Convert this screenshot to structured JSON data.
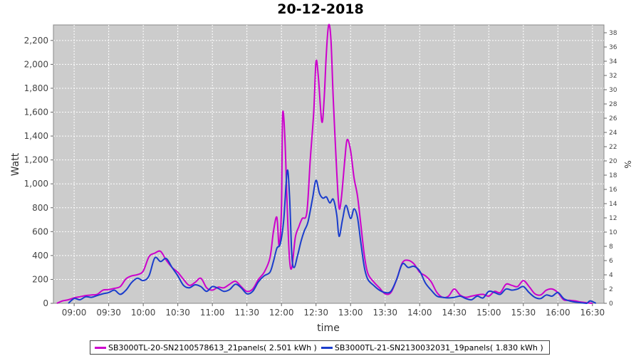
{
  "chart_data": {
    "type": "line",
    "title": "20-12-2018",
    "xlabel": "time",
    "ylabel": "Watt",
    "y2label": "%",
    "x_ticks": [
      "09:00",
      "09:30",
      "10:00",
      "10:30",
      "11:00",
      "11:30",
      "12:00",
      "12:30",
      "13:00",
      "13:30",
      "14:00",
      "14:30",
      "15:00",
      "15:30",
      "16:00",
      "16:30"
    ],
    "y_ticks": [
      "0",
      "200",
      "400",
      "600",
      "800",
      "1,000",
      "1,200",
      "1,400",
      "1,600",
      "1,800",
      "2,000",
      "2,200"
    ],
    "y2_ticks": [
      "0",
      "2",
      "4",
      "6",
      "8",
      "10",
      "12",
      "14",
      "16",
      "18",
      "20",
      "22",
      "24",
      "26",
      "28",
      "30",
      "32",
      "34",
      "36",
      "38"
    ],
    "ylim": [
      0,
      2330
    ],
    "y2lim": [
      0,
      39.1
    ],
    "xlim": [
      "08:42",
      "16:40"
    ],
    "grid": true,
    "legend_position": "bottom",
    "background": "#cccccc",
    "series": [
      {
        "name": "SB3000TL-20-SN2100578613_21panels( 2.501 kWh )",
        "color": "#cc00cc",
        "points": [
          [
            "08:45",
            0
          ],
          [
            "08:50",
            20
          ],
          [
            "08:55",
            30
          ],
          [
            "09:00",
            45
          ],
          [
            "09:05",
            55
          ],
          [
            "09:10",
            65
          ],
          [
            "09:15",
            70
          ],
          [
            "09:20",
            75
          ],
          [
            "09:25",
            110
          ],
          [
            "09:30",
            115
          ],
          [
            "09:35",
            125
          ],
          [
            "09:40",
            140
          ],
          [
            "09:45",
            205
          ],
          [
            "09:50",
            230
          ],
          [
            "09:55",
            240
          ],
          [
            "10:00",
            270
          ],
          [
            "10:05",
            390
          ],
          [
            "10:10",
            420
          ],
          [
            "10:15",
            435
          ],
          [
            "10:20",
            360
          ],
          [
            "10:25",
            300
          ],
          [
            "10:30",
            260
          ],
          [
            "10:35",
            200
          ],
          [
            "10:40",
            150
          ],
          [
            "10:45",
            175
          ],
          [
            "10:50",
            210
          ],
          [
            "10:55",
            130
          ],
          [
            "11:00",
            110
          ],
          [
            "11:05",
            135
          ],
          [
            "11:10",
            130
          ],
          [
            "11:15",
            160
          ],
          [
            "11:20",
            185
          ],
          [
            "11:25",
            140
          ],
          [
            "11:30",
            100
          ],
          [
            "11:35",
            120
          ],
          [
            "11:40",
            200
          ],
          [
            "11:45",
            260
          ],
          [
            "11:50",
            380
          ],
          [
            "11:53",
            600
          ],
          [
            "11:56",
            720
          ],
          [
            "11:58",
            480
          ],
          [
            "12:00",
            800
          ],
          [
            "12:01",
            1580
          ],
          [
            "12:03",
            1380
          ],
          [
            "12:05",
            800
          ],
          [
            "12:07",
            370
          ],
          [
            "12:09",
            300
          ],
          [
            "12:12",
            550
          ],
          [
            "12:15",
            640
          ],
          [
            "12:18",
            710
          ],
          [
            "12:22",
            760
          ],
          [
            "12:25",
            1200
          ],
          [
            "12:28",
            1600
          ],
          [
            "12:30",
            2020
          ],
          [
            "12:32",
            1900
          ],
          [
            "12:35",
            1520
          ],
          [
            "12:37",
            1700
          ],
          [
            "12:39",
            2100
          ],
          [
            "12:41",
            2330
          ],
          [
            "12:43",
            2200
          ],
          [
            "12:45",
            1700
          ],
          [
            "12:48",
            1100
          ],
          [
            "12:50",
            800
          ],
          [
            "12:52",
            880
          ],
          [
            "12:55",
            1200
          ],
          [
            "12:57",
            1370
          ],
          [
            "13:00",
            1280
          ],
          [
            "13:03",
            1050
          ],
          [
            "13:06",
            900
          ],
          [
            "13:09",
            650
          ],
          [
            "13:12",
            400
          ],
          [
            "13:15",
            250
          ],
          [
            "13:20",
            180
          ],
          [
            "13:25",
            130
          ],
          [
            "13:30",
            80
          ],
          [
            "13:35",
            90
          ],
          [
            "13:40",
            200
          ],
          [
            "13:45",
            340
          ],
          [
            "13:50",
            360
          ],
          [
            "13:55",
            330
          ],
          [
            "14:00",
            260
          ],
          [
            "14:05",
            230
          ],
          [
            "14:10",
            180
          ],
          [
            "14:15",
            90
          ],
          [
            "14:20",
            50
          ],
          [
            "14:25",
            60
          ],
          [
            "14:30",
            120
          ],
          [
            "14:35",
            70
          ],
          [
            "14:40",
            50
          ],
          [
            "14:45",
            60
          ],
          [
            "14:50",
            70
          ],
          [
            "14:55",
            75
          ],
          [
            "15:00",
            60
          ],
          [
            "15:05",
            100
          ],
          [
            "15:10",
            90
          ],
          [
            "15:15",
            160
          ],
          [
            "15:20",
            150
          ],
          [
            "15:25",
            140
          ],
          [
            "15:30",
            190
          ],
          [
            "15:35",
            140
          ],
          [
            "15:40",
            80
          ],
          [
            "15:45",
            70
          ],
          [
            "15:50",
            110
          ],
          [
            "15:55",
            120
          ],
          [
            "16:00",
            90
          ],
          [
            "16:05",
            30
          ],
          [
            "16:10",
            25
          ],
          [
            "16:15",
            20
          ],
          [
            "16:20",
            10
          ],
          [
            "16:25",
            5
          ],
          [
            "16:30",
            0
          ]
        ]
      },
      {
        "name": "SB3000TL-21-SN2130032031_19panels( 1.830 kWh )",
        "color": "#1a3dcc",
        "points": [
          [
            "08:55",
            0
          ],
          [
            "09:00",
            40
          ],
          [
            "09:05",
            30
          ],
          [
            "09:10",
            55
          ],
          [
            "09:15",
            50
          ],
          [
            "09:20",
            65
          ],
          [
            "09:25",
            80
          ],
          [
            "09:30",
            90
          ],
          [
            "09:35",
            110
          ],
          [
            "09:40",
            75
          ],
          [
            "09:45",
            110
          ],
          [
            "09:50",
            175
          ],
          [
            "09:55",
            210
          ],
          [
            "10:00",
            190
          ],
          [
            "10:05",
            230
          ],
          [
            "10:10",
            380
          ],
          [
            "10:15",
            350
          ],
          [
            "10:20",
            375
          ],
          [
            "10:25",
            300
          ],
          [
            "10:30",
            230
          ],
          [
            "10:35",
            150
          ],
          [
            "10:40",
            130
          ],
          [
            "10:45",
            155
          ],
          [
            "10:50",
            140
          ],
          [
            "10:55",
            100
          ],
          [
            "11:00",
            140
          ],
          [
            "11:05",
            125
          ],
          [
            "11:10",
            100
          ],
          [
            "11:15",
            115
          ],
          [
            "11:20",
            160
          ],
          [
            "11:25",
            130
          ],
          [
            "11:30",
            80
          ],
          [
            "11:35",
            100
          ],
          [
            "11:40",
            180
          ],
          [
            "11:45",
            230
          ],
          [
            "11:50",
            260
          ],
          [
            "11:53",
            350
          ],
          [
            "11:56",
            460
          ],
          [
            "11:59",
            500
          ],
          [
            "12:02",
            700
          ],
          [
            "12:05",
            1110
          ],
          [
            "12:07",
            900
          ],
          [
            "12:09",
            400
          ],
          [
            "12:11",
            300
          ],
          [
            "12:14",
            400
          ],
          [
            "12:17",
            520
          ],
          [
            "12:20",
            610
          ],
          [
            "12:23",
            680
          ],
          [
            "12:27",
            880
          ],
          [
            "12:30",
            1030
          ],
          [
            "12:33",
            920
          ],
          [
            "12:36",
            880
          ],
          [
            "12:39",
            890
          ],
          [
            "12:42",
            840
          ],
          [
            "12:45",
            870
          ],
          [
            "12:48",
            740
          ],
          [
            "12:50",
            560
          ],
          [
            "12:53",
            700
          ],
          [
            "12:56",
            820
          ],
          [
            "13:00",
            710
          ],
          [
            "13:03",
            790
          ],
          [
            "13:06",
            720
          ],
          [
            "13:09",
            500
          ],
          [
            "13:12",
            300
          ],
          [
            "13:15",
            200
          ],
          [
            "13:20",
            150
          ],
          [
            "13:25",
            110
          ],
          [
            "13:30",
            90
          ],
          [
            "13:35",
            100
          ],
          [
            "13:40",
            200
          ],
          [
            "13:45",
            330
          ],
          [
            "13:50",
            300
          ],
          [
            "13:55",
            310
          ],
          [
            "14:00",
            270
          ],
          [
            "14:05",
            170
          ],
          [
            "14:10",
            110
          ],
          [
            "14:15",
            60
          ],
          [
            "14:20",
            50
          ],
          [
            "14:25",
            45
          ],
          [
            "14:30",
            50
          ],
          [
            "14:35",
            60
          ],
          [
            "14:40",
            40
          ],
          [
            "14:45",
            30
          ],
          [
            "14:50",
            60
          ],
          [
            "14:55",
            45
          ],
          [
            "15:00",
            100
          ],
          [
            "15:05",
            90
          ],
          [
            "15:10",
            75
          ],
          [
            "15:15",
            120
          ],
          [
            "15:20",
            110
          ],
          [
            "15:25",
            120
          ],
          [
            "15:30",
            140
          ],
          [
            "15:35",
            90
          ],
          [
            "15:40",
            50
          ],
          [
            "15:45",
            40
          ],
          [
            "15:50",
            70
          ],
          [
            "15:55",
            60
          ],
          [
            "16:00",
            90
          ],
          [
            "16:05",
            40
          ],
          [
            "16:10",
            20
          ],
          [
            "16:15",
            10
          ],
          [
            "16:20",
            5
          ],
          [
            "16:25",
            0
          ],
          [
            "16:28",
            20
          ],
          [
            "16:33",
            0
          ]
        ]
      }
    ]
  }
}
